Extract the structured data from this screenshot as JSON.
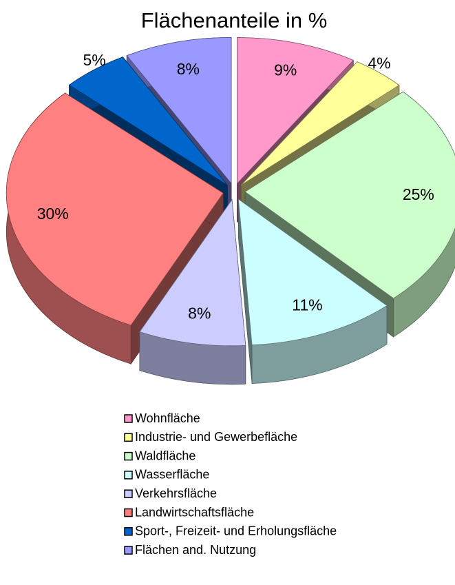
{
  "chart_data": {
    "type": "pie",
    "title": "Flächenanteile in %",
    "categories": [
      "Wohnfläche",
      "Industrie- und Gewerbefläche",
      "Waldfläche",
      "Wasserfläche",
      "Verkehrsfläche",
      "Landwirtschaftsfläche",
      "Sport-, Freizeit- und Erholungsfläche",
      "Flächen and. Nutzung"
    ],
    "values": [
      9,
      4,
      25,
      11,
      8,
      30,
      5,
      8
    ],
    "value_labels": [
      "9%",
      "4%",
      "25%",
      "11%",
      "8%",
      "30%",
      "5%",
      "8%"
    ],
    "colors": [
      "#ff99cc",
      "#ffff99",
      "#ccffcc",
      "#ccffff",
      "#ccccff",
      "#ff8080",
      "#0066cc",
      "#9999ff"
    ],
    "legend": "bottom"
  }
}
